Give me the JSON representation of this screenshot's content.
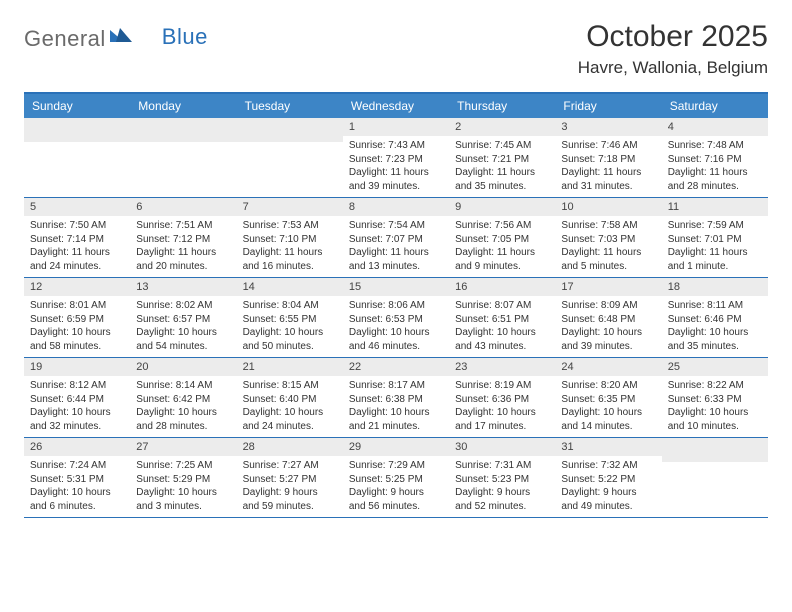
{
  "brand": {
    "text1": "General",
    "text2": "Blue"
  },
  "title": "October 2025",
  "location": "Havre, Wallonia, Belgium",
  "colors": {
    "header_blue": "#3d85c6",
    "rule_blue": "#2a71b8",
    "daynum_bg": "#ececec",
    "text": "#333333",
    "logo_gray": "#6a6a6a"
  },
  "typography": {
    "title_fontsize": 30,
    "location_fontsize": 17,
    "dow_fontsize": 12,
    "daynum_fontsize": 11,
    "body_fontsize": 10
  },
  "daysOfWeek": [
    "Sunday",
    "Monday",
    "Tuesday",
    "Wednesday",
    "Thursday",
    "Friday",
    "Saturday"
  ],
  "weeks": [
    [
      {
        "n": null
      },
      {
        "n": null
      },
      {
        "n": null
      },
      {
        "n": 1,
        "sunrise": "7:43 AM",
        "sunset": "7:23 PM",
        "dlh": 11,
        "dlm": 39
      },
      {
        "n": 2,
        "sunrise": "7:45 AM",
        "sunset": "7:21 PM",
        "dlh": 11,
        "dlm": 35
      },
      {
        "n": 3,
        "sunrise": "7:46 AM",
        "sunset": "7:18 PM",
        "dlh": 11,
        "dlm": 31
      },
      {
        "n": 4,
        "sunrise": "7:48 AM",
        "sunset": "7:16 PM",
        "dlh": 11,
        "dlm": 28
      }
    ],
    [
      {
        "n": 5,
        "sunrise": "7:50 AM",
        "sunset": "7:14 PM",
        "dlh": 11,
        "dlm": 24
      },
      {
        "n": 6,
        "sunrise": "7:51 AM",
        "sunset": "7:12 PM",
        "dlh": 11,
        "dlm": 20
      },
      {
        "n": 7,
        "sunrise": "7:53 AM",
        "sunset": "7:10 PM",
        "dlh": 11,
        "dlm": 16
      },
      {
        "n": 8,
        "sunrise": "7:54 AM",
        "sunset": "7:07 PM",
        "dlh": 11,
        "dlm": 13
      },
      {
        "n": 9,
        "sunrise": "7:56 AM",
        "sunset": "7:05 PM",
        "dlh": 11,
        "dlm": 9
      },
      {
        "n": 10,
        "sunrise": "7:58 AM",
        "sunset": "7:03 PM",
        "dlh": 11,
        "dlm": 5
      },
      {
        "n": 11,
        "sunrise": "7:59 AM",
        "sunset": "7:01 PM",
        "dlh": 11,
        "dlm": 1
      }
    ],
    [
      {
        "n": 12,
        "sunrise": "8:01 AM",
        "sunset": "6:59 PM",
        "dlh": 10,
        "dlm": 58
      },
      {
        "n": 13,
        "sunrise": "8:02 AM",
        "sunset": "6:57 PM",
        "dlh": 10,
        "dlm": 54
      },
      {
        "n": 14,
        "sunrise": "8:04 AM",
        "sunset": "6:55 PM",
        "dlh": 10,
        "dlm": 50
      },
      {
        "n": 15,
        "sunrise": "8:06 AM",
        "sunset": "6:53 PM",
        "dlh": 10,
        "dlm": 46
      },
      {
        "n": 16,
        "sunrise": "8:07 AM",
        "sunset": "6:51 PM",
        "dlh": 10,
        "dlm": 43
      },
      {
        "n": 17,
        "sunrise": "8:09 AM",
        "sunset": "6:48 PM",
        "dlh": 10,
        "dlm": 39
      },
      {
        "n": 18,
        "sunrise": "8:11 AM",
        "sunset": "6:46 PM",
        "dlh": 10,
        "dlm": 35
      }
    ],
    [
      {
        "n": 19,
        "sunrise": "8:12 AM",
        "sunset": "6:44 PM",
        "dlh": 10,
        "dlm": 32
      },
      {
        "n": 20,
        "sunrise": "8:14 AM",
        "sunset": "6:42 PM",
        "dlh": 10,
        "dlm": 28
      },
      {
        "n": 21,
        "sunrise": "8:15 AM",
        "sunset": "6:40 PM",
        "dlh": 10,
        "dlm": 24
      },
      {
        "n": 22,
        "sunrise": "8:17 AM",
        "sunset": "6:38 PM",
        "dlh": 10,
        "dlm": 21
      },
      {
        "n": 23,
        "sunrise": "8:19 AM",
        "sunset": "6:36 PM",
        "dlh": 10,
        "dlm": 17
      },
      {
        "n": 24,
        "sunrise": "8:20 AM",
        "sunset": "6:35 PM",
        "dlh": 10,
        "dlm": 14
      },
      {
        "n": 25,
        "sunrise": "8:22 AM",
        "sunset": "6:33 PM",
        "dlh": 10,
        "dlm": 10
      }
    ],
    [
      {
        "n": 26,
        "sunrise": "7:24 AM",
        "sunset": "5:31 PM",
        "dlh": 10,
        "dlm": 6
      },
      {
        "n": 27,
        "sunrise": "7:25 AM",
        "sunset": "5:29 PM",
        "dlh": 10,
        "dlm": 3
      },
      {
        "n": 28,
        "sunrise": "7:27 AM",
        "sunset": "5:27 PM",
        "dlh": 9,
        "dlm": 59
      },
      {
        "n": 29,
        "sunrise": "7:29 AM",
        "sunset": "5:25 PM",
        "dlh": 9,
        "dlm": 56
      },
      {
        "n": 30,
        "sunrise": "7:31 AM",
        "sunset": "5:23 PM",
        "dlh": 9,
        "dlm": 52
      },
      {
        "n": 31,
        "sunrise": "7:32 AM",
        "sunset": "5:22 PM",
        "dlh": 9,
        "dlm": 49
      },
      {
        "n": null
      }
    ]
  ],
  "labels": {
    "sunrise": "Sunrise:",
    "sunset": "Sunset:",
    "daylight_prefix": "Daylight:",
    "hours_word": "hours",
    "and_word": "and",
    "minute_word": "minute",
    "minutes_word": "minutes"
  }
}
